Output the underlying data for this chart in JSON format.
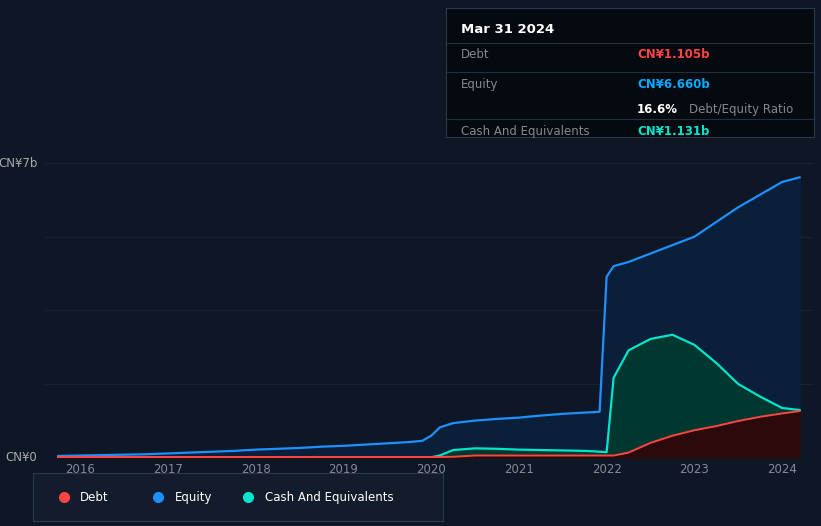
{
  "bg_color": "#0e1726",
  "plot_bg_color": "#0e1726",
  "title_box": {
    "date": "Mar 31 2024",
    "debt_label": "Debt",
    "debt_value": "CN¥1.105b",
    "equity_label": "Equity",
    "equity_value": "CN¥6.660b",
    "ratio_bold": "16.6%",
    "ratio_text": "Debt/Equity Ratio",
    "cash_label": "Cash And Equivalents",
    "cash_value": "CN¥1.131b",
    "debt_color": "#ff4444",
    "equity_color": "#00aaff",
    "cash_color": "#00e5cc",
    "label_color": "#888888",
    "box_bg": "#050a10"
  },
  "ylabel_7b": "CN¥7b",
  "ylabel_0": "CN¥0",
  "x_years": [
    2016,
    2017,
    2018,
    2019,
    2020,
    2021,
    2022,
    2023,
    2024
  ],
  "grid_color": "#1a2535",
  "equity_color": "#1e90ff",
  "equity_fill": "#0a1f3a",
  "debt_color": "#ff4444",
  "debt_fill": "#2a0a0a",
  "cash_color": "#00e5cc",
  "cash_fill": "#003830",
  "legend_items": [
    "Debt",
    "Equity",
    "Cash And Equivalents"
  ],
  "legend_colors": [
    "#ff4444",
    "#1e90ff",
    "#00e5cc"
  ],
  "time_points": [
    2015.75,
    2016.0,
    2016.25,
    2016.5,
    2016.75,
    2017.0,
    2017.25,
    2017.5,
    2017.75,
    2018.0,
    2018.25,
    2018.5,
    2018.75,
    2019.0,
    2019.25,
    2019.5,
    2019.75,
    2019.9,
    2020.0,
    2020.1,
    2020.25,
    2020.5,
    2020.75,
    2021.0,
    2021.25,
    2021.5,
    2021.75,
    2021.85,
    2021.92,
    2022.0,
    2022.08,
    2022.25,
    2022.5,
    2022.75,
    2023.0,
    2023.25,
    2023.5,
    2023.75,
    2024.0,
    2024.2
  ],
  "equity_values": [
    0.04,
    0.05,
    0.06,
    0.07,
    0.08,
    0.1,
    0.12,
    0.14,
    0.16,
    0.19,
    0.21,
    0.23,
    0.26,
    0.28,
    0.31,
    0.34,
    0.37,
    0.4,
    0.52,
    0.72,
    0.82,
    0.88,
    0.92,
    0.95,
    1.0,
    1.04,
    1.07,
    1.08,
    1.09,
    4.3,
    4.55,
    4.65,
    4.85,
    5.05,
    5.25,
    5.6,
    5.95,
    6.25,
    6.55,
    6.66
  ],
  "debt_values": [
    0.015,
    0.015,
    0.015,
    0.015,
    0.015,
    0.015,
    0.015,
    0.015,
    0.015,
    0.015,
    0.015,
    0.015,
    0.015,
    0.015,
    0.015,
    0.015,
    0.015,
    0.015,
    0.015,
    0.015,
    0.02,
    0.05,
    0.05,
    0.05,
    0.05,
    0.05,
    0.05,
    0.05,
    0.05,
    0.05,
    0.05,
    0.12,
    0.35,
    0.52,
    0.65,
    0.75,
    0.87,
    0.97,
    1.05,
    1.105
  ],
  "cash_values": [
    0.008,
    0.008,
    0.008,
    0.008,
    0.008,
    0.008,
    0.008,
    0.008,
    0.008,
    0.008,
    0.008,
    0.008,
    0.008,
    0.008,
    0.008,
    0.008,
    0.008,
    0.008,
    0.008,
    0.05,
    0.18,
    0.22,
    0.21,
    0.19,
    0.18,
    0.17,
    0.16,
    0.15,
    0.14,
    0.13,
    1.9,
    2.55,
    2.82,
    2.92,
    2.68,
    2.25,
    1.75,
    1.45,
    1.18,
    1.131
  ]
}
